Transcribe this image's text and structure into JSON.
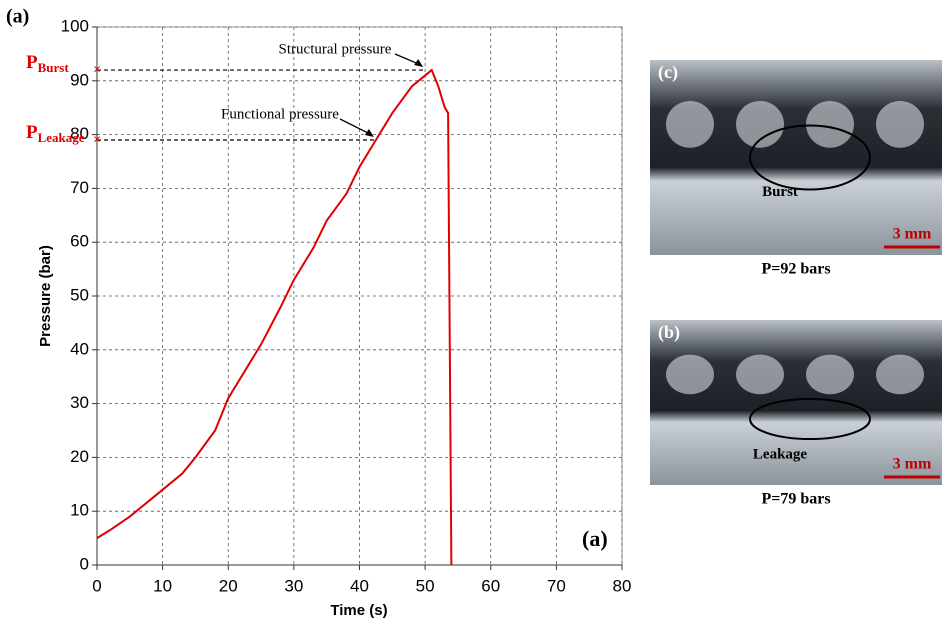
{
  "chart_data": {
    "type": "line",
    "panel_label": "(a)",
    "inner_label": "(a)",
    "x_label": "Time (s)",
    "y_label": "Pressure (bar)",
    "x": [
      0,
      2,
      5,
      8,
      10,
      13,
      15,
      18,
      20,
      23,
      25,
      28,
      30,
      33,
      35,
      38,
      40,
      42.5,
      45,
      48,
      50,
      51,
      52,
      53,
      53.5,
      54
    ],
    "values": [
      5,
      6.5,
      9,
      12,
      14,
      17,
      20,
      25,
      31,
      37,
      41,
      48,
      53,
      59,
      64,
      69,
      74,
      79,
      84,
      89,
      91,
      92,
      89,
      85,
      84,
      0
    ],
    "color": "#e00000",
    "xlim": [
      0,
      80
    ],
    "xticks": [
      0,
      10,
      20,
      30,
      40,
      50,
      60,
      70,
      80
    ],
    "ylim": [
      0,
      100
    ],
    "yticks": [
      0,
      10,
      20,
      30,
      40,
      50,
      60,
      70,
      80,
      90,
      100
    ],
    "grid": true,
    "markers": [
      {
        "label": "P",
        "sub": "Burst",
        "y": 92,
        "x": 50,
        "note": "Structural pressure"
      },
      {
        "label": "P",
        "sub": "Leakage",
        "y": 79,
        "x": 42.5,
        "note": "Functional pressure"
      }
    ]
  },
  "panels": [
    {
      "tag": "(c)",
      "callout": "Burst",
      "scale": "3 mm",
      "caption": "P=92 bars"
    },
    {
      "tag": "(b)",
      "callout": "Leakage",
      "scale": "3 mm",
      "caption": "P=79 bars"
    }
  ]
}
